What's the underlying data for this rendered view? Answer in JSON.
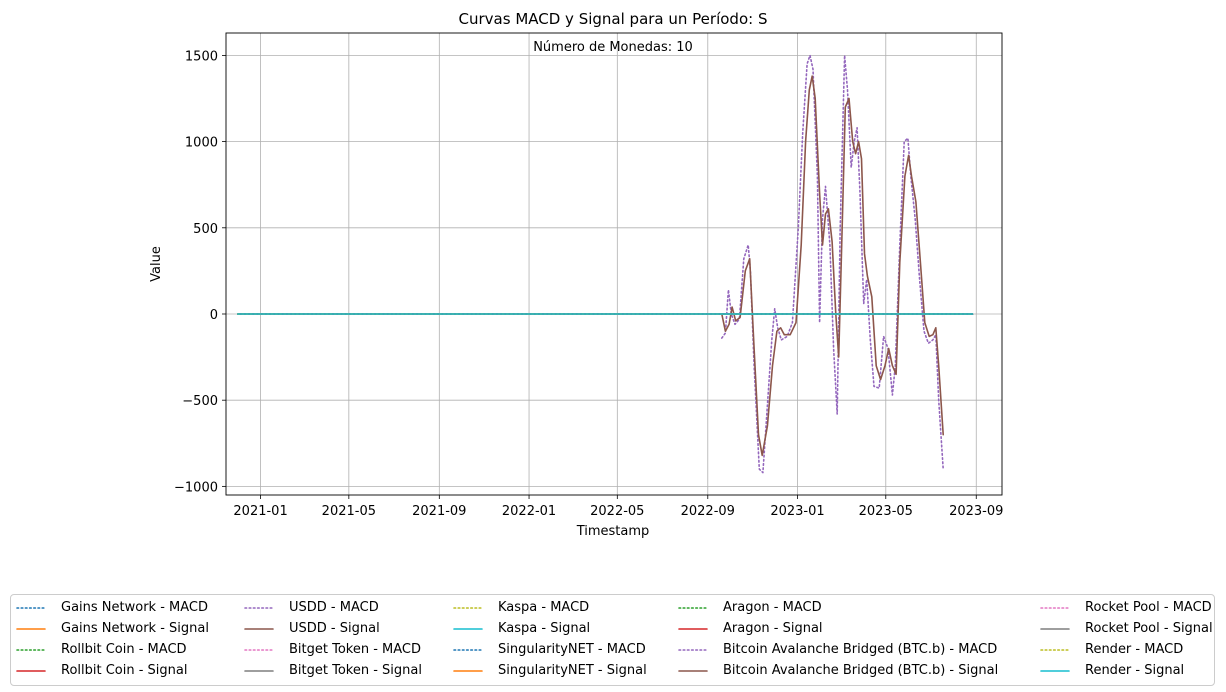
{
  "chart_data": {
    "type": "line",
    "title": "Curvas MACD y Signal para un Período: S",
    "annotation": "Número de Monedas: 10",
    "xlabel": "Timestamp",
    "ylabel": "Value",
    "xlim": [
      "2020-11-15",
      "2023-10-06"
    ],
    "ylim": [
      -1050,
      1630
    ],
    "x_ticks": [
      {
        "date": "2021-01-01",
        "label": "2021-01"
      },
      {
        "date": "2021-05-01",
        "label": "2021-05"
      },
      {
        "date": "2021-09-01",
        "label": "2021-09"
      },
      {
        "date": "2022-01-01",
        "label": "2022-01"
      },
      {
        "date": "2022-05-01",
        "label": "2022-05"
      },
      {
        "date": "2022-09-01",
        "label": "2022-09"
      },
      {
        "date": "2023-01-01",
        "label": "2023-01"
      },
      {
        "date": "2023-05-01",
        "label": "2023-05"
      },
      {
        "date": "2023-09-01",
        "label": "2023-09"
      }
    ],
    "y_ticks": [
      {
        "value": 1500,
        "label": "1500"
      },
      {
        "value": 1000,
        "label": "1000"
      },
      {
        "value": 500,
        "label": "500"
      },
      {
        "value": 0,
        "label": "0"
      },
      {
        "value": -500,
        "label": "−500"
      },
      {
        "value": -1000,
        "label": "−1000"
      }
    ],
    "grid": true,
    "legend_position": "bottom-center",
    "flat_range": [
      "2020-12-01",
      "2023-08-27"
    ],
    "series": [
      {
        "name": "Gains Network - MACD",
        "color": "#1f77b4",
        "style": "dotted",
        "profile": "flat"
      },
      {
        "name": "Gains Network - Signal",
        "color": "#ff7f0e",
        "style": "solid",
        "profile": "flat"
      },
      {
        "name": "Rollbit Coin - MACD",
        "color": "#2ca02c",
        "style": "dotted",
        "profile": "flat"
      },
      {
        "name": "Rollbit Coin - Signal",
        "color": "#d62728",
        "style": "solid",
        "profile": "flat"
      },
      {
        "name": "USDD - MACD",
        "color": "#9467bd",
        "style": "dotted",
        "profile": "flat"
      },
      {
        "name": "USDD - Signal",
        "color": "#8c564b",
        "style": "solid",
        "profile": "flat"
      },
      {
        "name": "Bitget Token - MACD",
        "color": "#e377c2",
        "style": "dotted",
        "profile": "flat"
      },
      {
        "name": "Bitget Token - Signal",
        "color": "#7f7f7f",
        "style": "solid",
        "profile": "flat"
      },
      {
        "name": "Kaspa - MACD",
        "color": "#bcbd22",
        "style": "dotted",
        "profile": "flat"
      },
      {
        "name": "Kaspa - Signal",
        "color": "#17becf",
        "style": "solid",
        "profile": "flat"
      },
      {
        "name": "SingularityNET - MACD",
        "color": "#1f77b4",
        "style": "dotted",
        "profile": "flat"
      },
      {
        "name": "SingularityNET - Signal",
        "color": "#ff7f0e",
        "style": "solid",
        "profile": "flat"
      },
      {
        "name": "Aragon - MACD",
        "color": "#2ca02c",
        "style": "dotted",
        "profile": "flat"
      },
      {
        "name": "Aragon - Signal",
        "color": "#d62728",
        "style": "solid",
        "profile": "flat"
      },
      {
        "name": "Bitcoin Avalanche Bridged (BTC.b) - MACD",
        "color": "#9467bd",
        "style": "dotted",
        "points": [
          [
            "2022-09-20",
            -140
          ],
          [
            "2022-09-25",
            -110
          ],
          [
            "2022-09-29",
            140
          ],
          [
            "2022-10-03",
            0
          ],
          [
            "2022-10-08",
            -60
          ],
          [
            "2022-10-14",
            -30
          ],
          [
            "2022-10-20",
            320
          ],
          [
            "2022-10-26",
            400
          ],
          [
            "2022-10-29",
            250
          ],
          [
            "2022-11-03",
            -300
          ],
          [
            "2022-11-10",
            -900
          ],
          [
            "2022-11-15",
            -920
          ],
          [
            "2022-11-20",
            -600
          ],
          [
            "2022-11-27",
            -150
          ],
          [
            "2022-12-01",
            30
          ],
          [
            "2022-12-05",
            -80
          ],
          [
            "2022-12-10",
            -150
          ],
          [
            "2022-12-18",
            -130
          ],
          [
            "2022-12-25",
            -50
          ],
          [
            "2023-01-02",
            500
          ],
          [
            "2023-01-08",
            1050
          ],
          [
            "2023-01-14",
            1450
          ],
          [
            "2023-01-18",
            1500
          ],
          [
            "2023-01-22",
            1420
          ],
          [
            "2023-01-28",
            800
          ],
          [
            "2023-01-31",
            -50
          ],
          [
            "2023-02-04",
            550
          ],
          [
            "2023-02-08",
            740
          ],
          [
            "2023-02-14",
            400
          ],
          [
            "2023-02-19",
            -200
          ],
          [
            "2023-02-24",
            -580
          ],
          [
            "2023-02-28",
            500
          ],
          [
            "2023-03-06",
            1500
          ],
          [
            "2023-03-10",
            1300
          ],
          [
            "2023-03-15",
            850
          ],
          [
            "2023-03-19",
            1000
          ],
          [
            "2023-03-23",
            1080
          ],
          [
            "2023-03-27",
            700
          ],
          [
            "2023-04-01",
            60
          ],
          [
            "2023-04-05",
            200
          ],
          [
            "2023-04-10",
            -150
          ],
          [
            "2023-04-15",
            -420
          ],
          [
            "2023-04-22",
            -430
          ],
          [
            "2023-04-28",
            -130
          ],
          [
            "2023-05-04",
            -200
          ],
          [
            "2023-05-10",
            -470
          ],
          [
            "2023-05-14",
            -300
          ],
          [
            "2023-05-20",
            400
          ],
          [
            "2023-05-26",
            1000
          ],
          [
            "2023-05-31",
            1020
          ],
          [
            "2023-06-04",
            800
          ],
          [
            "2023-06-10",
            550
          ],
          [
            "2023-06-16",
            200
          ],
          [
            "2023-06-22",
            -100
          ],
          [
            "2023-06-28",
            -170
          ],
          [
            "2023-07-04",
            -150
          ],
          [
            "2023-07-08",
            -120
          ],
          [
            "2023-07-12",
            -500
          ],
          [
            "2023-07-18",
            -900
          ]
        ]
      },
      {
        "name": "Bitcoin Avalanche Bridged (BTC.b) - Signal",
        "color": "#8c564b",
        "style": "solid",
        "points": [
          [
            "2022-09-20",
            0
          ],
          [
            "2022-09-25",
            -100
          ],
          [
            "2022-09-30",
            -60
          ],
          [
            "2022-10-04",
            40
          ],
          [
            "2022-10-09",
            -40
          ],
          [
            "2022-10-15",
            -20
          ],
          [
            "2022-10-22",
            250
          ],
          [
            "2022-10-28",
            320
          ],
          [
            "2022-11-03",
            -200
          ],
          [
            "2022-11-09",
            -700
          ],
          [
            "2022-11-14",
            -820
          ],
          [
            "2022-11-21",
            -650
          ],
          [
            "2022-11-28",
            -300
          ],
          [
            "2022-12-04",
            -100
          ],
          [
            "2022-12-09",
            -80
          ],
          [
            "2022-12-14",
            -120
          ],
          [
            "2022-12-22",
            -120
          ],
          [
            "2022-12-30",
            -50
          ],
          [
            "2023-01-06",
            400
          ],
          [
            "2023-01-12",
            1000
          ],
          [
            "2023-01-17",
            1300
          ],
          [
            "2023-01-21",
            1380
          ],
          [
            "2023-01-25",
            1250
          ],
          [
            "2023-01-31",
            700
          ],
          [
            "2023-02-04",
            400
          ],
          [
            "2023-02-08",
            580
          ],
          [
            "2023-02-12",
            610
          ],
          [
            "2023-02-17",
            420
          ],
          [
            "2023-02-22",
            0
          ],
          [
            "2023-02-26",
            -250
          ],
          [
            "2023-03-02",
            400
          ],
          [
            "2023-03-07",
            1200
          ],
          [
            "2023-03-12",
            1250
          ],
          [
            "2023-03-17",
            1000
          ],
          [
            "2023-03-21",
            930
          ],
          [
            "2023-03-25",
            1000
          ],
          [
            "2023-03-29",
            900
          ],
          [
            "2023-04-02",
            350
          ],
          [
            "2023-04-06",
            220
          ],
          [
            "2023-04-12",
            100
          ],
          [
            "2023-04-18",
            -300
          ],
          [
            "2023-04-24",
            -380
          ],
          [
            "2023-04-30",
            -300
          ],
          [
            "2023-05-05",
            -200
          ],
          [
            "2023-05-10",
            -300
          ],
          [
            "2023-05-15",
            -350
          ],
          [
            "2023-05-20",
            300
          ],
          [
            "2023-05-27",
            800
          ],
          [
            "2023-06-01",
            920
          ],
          [
            "2023-06-05",
            800
          ],
          [
            "2023-06-11",
            650
          ],
          [
            "2023-06-17",
            300
          ],
          [
            "2023-06-23",
            -50
          ],
          [
            "2023-06-29",
            -130
          ],
          [
            "2023-07-04",
            -120
          ],
          [
            "2023-07-08",
            -80
          ],
          [
            "2023-07-12",
            -300
          ],
          [
            "2023-07-18",
            -700
          ]
        ]
      },
      {
        "name": "Rocket Pool - MACD",
        "color": "#e377c2",
        "style": "dotted",
        "profile": "flat"
      },
      {
        "name": "Rocket Pool - Signal",
        "color": "#7f7f7f",
        "style": "solid",
        "profile": "flat"
      },
      {
        "name": "Render - MACD",
        "color": "#bcbd22",
        "style": "dotted",
        "profile": "flat"
      },
      {
        "name": "Render - Signal",
        "color": "#17becf",
        "style": "solid",
        "profile": "flat"
      }
    ]
  }
}
